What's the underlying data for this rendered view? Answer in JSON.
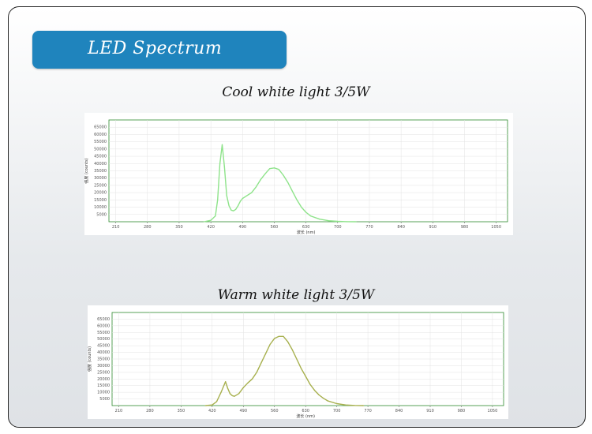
{
  "header": {
    "title": "LED Spectrum"
  },
  "chart_data": [
    {
      "type": "line",
      "title": "Cool white light 3/5W",
      "xlabel": "波长 (nm)",
      "ylabel": "强度 (counts)",
      "color": "#8ee38a",
      "xlim": [
        195,
        1075
      ],
      "ylim": [
        0,
        70000
      ],
      "xticks": [
        "210",
        "280",
        "350",
        "420",
        "490",
        "560",
        "630",
        "700",
        "770",
        "840",
        "910",
        "980",
        "1050"
      ],
      "yticks": [
        "5000",
        "10000",
        "15000",
        "20000",
        "25000",
        "30000",
        "35000",
        "40000",
        "45000",
        "50000",
        "55000",
        "60000",
        "65000"
      ],
      "x": [
        405,
        420,
        430,
        435,
        440,
        445,
        450,
        455,
        460,
        465,
        470,
        475,
        480,
        485,
        490,
        500,
        510,
        520,
        530,
        540,
        550,
        560,
        570,
        580,
        590,
        600,
        610,
        620,
        630,
        640,
        660,
        680,
        700,
        720,
        740
      ],
      "y": [
        0,
        1000,
        4000,
        15000,
        40000,
        53000,
        38000,
        18000,
        11000,
        8000,
        7500,
        8500,
        11000,
        14000,
        16000,
        18000,
        20000,
        24000,
        29000,
        33000,
        36500,
        37000,
        36000,
        32000,
        27000,
        21000,
        15000,
        10000,
        6500,
        4000,
        1800,
        700,
        250,
        80,
        0
      ]
    },
    {
      "type": "line",
      "title": "Warm white light 3/5W",
      "xlabel": "波长 (nm)",
      "ylabel": "强度 (counts)",
      "color": "#a7b04e",
      "xlim": [
        195,
        1075
      ],
      "ylim": [
        0,
        70000
      ],
      "xticks": [
        "210",
        "280",
        "350",
        "420",
        "490",
        "560",
        "630",
        "700",
        "770",
        "840",
        "910",
        "980",
        "1050"
      ],
      "yticks": [
        "5000",
        "10000",
        "15000",
        "20000",
        "25000",
        "30000",
        "35000",
        "40000",
        "45000",
        "50000",
        "55000",
        "60000",
        "65000"
      ],
      "x": [
        405,
        420,
        430,
        440,
        445,
        450,
        455,
        460,
        465,
        470,
        480,
        490,
        500,
        510,
        520,
        530,
        540,
        550,
        560,
        570,
        580,
        590,
        600,
        610,
        620,
        630,
        640,
        650,
        660,
        670,
        680,
        700,
        720,
        740,
        760
      ],
      "y": [
        0,
        500,
        3000,
        10000,
        14000,
        18000,
        13000,
        9000,
        7500,
        7000,
        9000,
        13500,
        17000,
        20000,
        25000,
        32000,
        39000,
        46000,
        50500,
        52000,
        52000,
        48000,
        42000,
        35000,
        28000,
        22000,
        16000,
        11500,
        8000,
        5500,
        3500,
        1500,
        500,
        120,
        0
      ]
    }
  ]
}
